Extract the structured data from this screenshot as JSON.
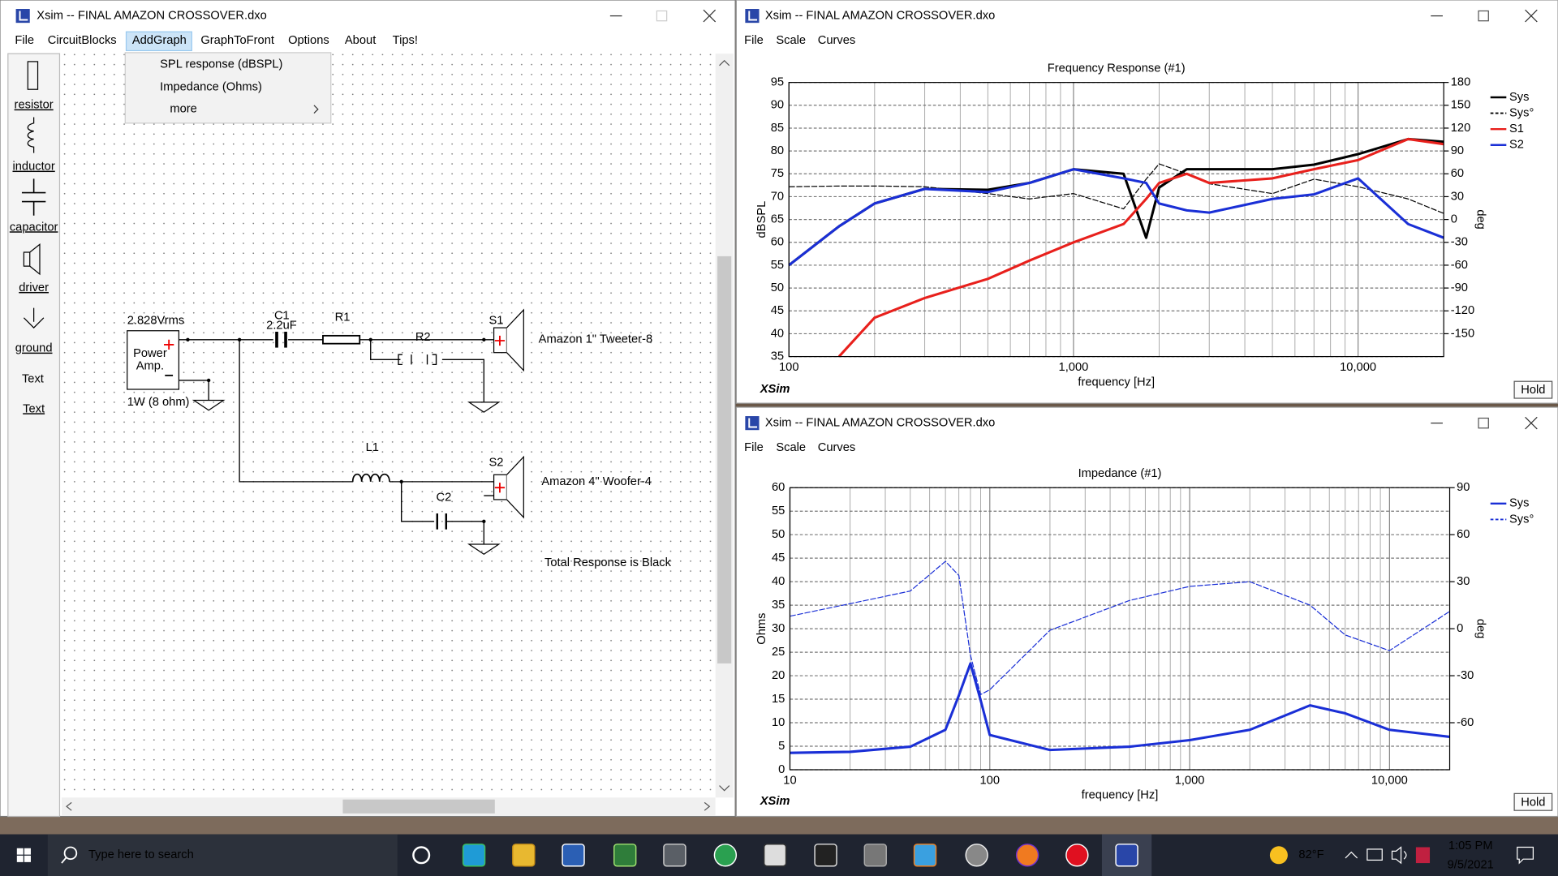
{
  "left_window": {
    "title": "Xsim -- FINAL AMAZON CROSSOVER.dxo",
    "menu": [
      "File",
      "CircuitBlocks",
      "AddGraph",
      "GraphToFront",
      "Options",
      "About",
      "Tips!"
    ],
    "dropdown": [
      "SPL response (dBSPL)",
      "Impedance (Ohms)",
      "more"
    ],
    "toolbox": [
      "resistor",
      "inductor",
      "capacitor",
      "driver",
      "ground",
      "Text",
      "Text"
    ],
    "circuit": {
      "source_voltage": "2.828Vrms",
      "amp_line1": "Power",
      "amp_line2": "Amp.",
      "amp_power": "1W (8 ohm)",
      "c1": "C1",
      "c1_value": "2.2uF",
      "r1": "R1",
      "r2": "R2",
      "s1": "S1",
      "s1_driver": "Amazon 1\" Tweeter-8",
      "l1": "L1",
      "c2": "C2",
      "s2": "S2",
      "s2_driver": "Amazon 4\" Woofer-4",
      "note": "Total Response is Black"
    }
  },
  "spl_window": {
    "title": "Xsim -- FINAL AMAZON CROSSOVER.dxo",
    "menu": [
      "File",
      "Scale",
      "Curves"
    ],
    "logo": "XSim",
    "button": "Hold"
  },
  "impedance_window": {
    "title": "Xsim -- FINAL AMAZON CROSSOVER.dxo",
    "menu": [
      "File",
      "Scale",
      "Curves"
    ],
    "logo": "XSim",
    "button": "Hold"
  },
  "chart_data": [
    {
      "type": "line",
      "title": "Frequency Response (#1)",
      "x_label": "frequency [Hz]",
      "y_label": "dBSPL",
      "y2_label": "deg",
      "log_x": true,
      "grid": true,
      "legend": "right",
      "x": [
        100,
        150,
        200,
        300,
        500,
        700,
        1000,
        1500,
        1800,
        2000,
        2500,
        3000,
        5000,
        7000,
        10000,
        15000,
        20000
      ],
      "xlim": [
        100,
        20000
      ],
      "xticks": [
        100,
        {
          "value": 1000,
          "label": "1,000"
        },
        {
          "value": 10000,
          "label": "10,000"
        }
      ],
      "ylim": [
        35,
        95
      ],
      "yticks": [
        35,
        40,
        45,
        50,
        55,
        60,
        65,
        70,
        75,
        80,
        85,
        90,
        95
      ],
      "y2lim": [
        -180,
        180
      ],
      "y2ticks": [
        -150,
        -120,
        -90,
        -60,
        -30,
        0,
        30,
        60,
        90,
        120,
        150,
        180
      ],
      "series": [
        {
          "name": "Sys",
          "color": "#000000",
          "line_width": 2.5,
          "values": [
            55,
            63.5,
            68.5,
            71.7,
            71.5,
            73,
            76,
            75,
            61,
            72,
            76,
            76,
            76,
            77,
            79.3,
            82.6,
            82
          ]
        },
        {
          "name": "Sys°",
          "color": "#000000",
          "line_width": 1,
          "dashed": true,
          "axis": "y2",
          "values": [
            43,
            44,
            44,
            43,
            34,
            27,
            34,
            14,
            53,
            73,
            60,
            47,
            34,
            53,
            43,
            27,
            8
          ]
        },
        {
          "name": "S1",
          "color": "#e8201c",
          "line_width": 2.5,
          "values": [
            null,
            35,
            43.5,
            47.8,
            52,
            56,
            60,
            64,
            69.5,
            73,
            75,
            73,
            74,
            76,
            78,
            82.6,
            81.5
          ]
        },
        {
          "name": "S2",
          "color": "#1a2fd6",
          "line_width": 2.5,
          "values": [
            55,
            63.5,
            68.5,
            71.7,
            71,
            73,
            76,
            74,
            73,
            68.5,
            67,
            66.5,
            69.5,
            70.5,
            74,
            64,
            61
          ]
        }
      ]
    },
    {
      "type": "line",
      "title": "Impedance (#1)",
      "x_label": "frequency [Hz]",
      "y_label": "Ohms",
      "y2_label": "deg",
      "log_x": true,
      "grid": true,
      "legend": "right",
      "x": [
        10,
        20,
        40,
        60,
        70,
        80,
        90,
        100,
        200,
        500,
        1000,
        2000,
        4000,
        6000,
        10000,
        20000
      ],
      "xlim": [
        10,
        20000
      ],
      "xticks": [
        10,
        100,
        {
          "value": 1000,
          "label": "1,000"
        },
        {
          "value": 10000,
          "label": "10,000"
        }
      ],
      "ylim": [
        0,
        60
      ],
      "yticks": [
        0,
        5,
        10,
        15,
        20,
        25,
        30,
        35,
        40,
        45,
        50,
        55,
        60
      ],
      "y2lim": [
        -90,
        90
      ],
      "y2ticks": [
        -60,
        -30,
        0,
        30,
        60,
        90
      ],
      "series": [
        {
          "name": "Sys",
          "color": "#1a2fd6",
          "line_width": 2.5,
          "values": [
            3.6,
            3.8,
            4.9,
            8.5,
            15.8,
            22.6,
            14.8,
            7.4,
            4.2,
            4.9,
            6.3,
            8.5,
            13.7,
            12,
            8.5,
            7
          ]
        },
        {
          "name": "Sys°",
          "color": "#1a2fd6",
          "line_width": 1,
          "dashed": true,
          "axis": "y2",
          "values": [
            8,
            16,
            24,
            43,
            34,
            -17,
            -42,
            -39,
            -1,
            18,
            27,
            30,
            15,
            -4,
            -14,
            11
          ]
        }
      ]
    }
  ],
  "taskbar": {
    "search": "Type here to search",
    "temperature": "82°F",
    "time": "1:05 PM",
    "date": "9/5/2021"
  }
}
